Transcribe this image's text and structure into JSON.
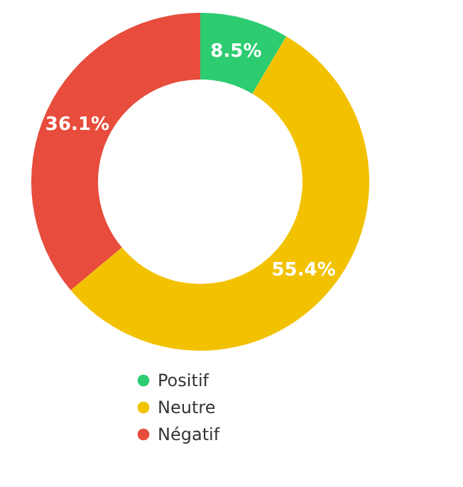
{
  "chart_data": {
    "type": "donut",
    "categories": [
      "Positif",
      "Neutre",
      "Négatif"
    ],
    "values": [
      8.5,
      55.4,
      36.1
    ],
    "colors": [
      "#2ecc71",
      "#f2c200",
      "#e74c3c"
    ],
    "value_labels": [
      "8.5%",
      "55.4%",
      "36.1%"
    ],
    "legend": "bottom"
  }
}
